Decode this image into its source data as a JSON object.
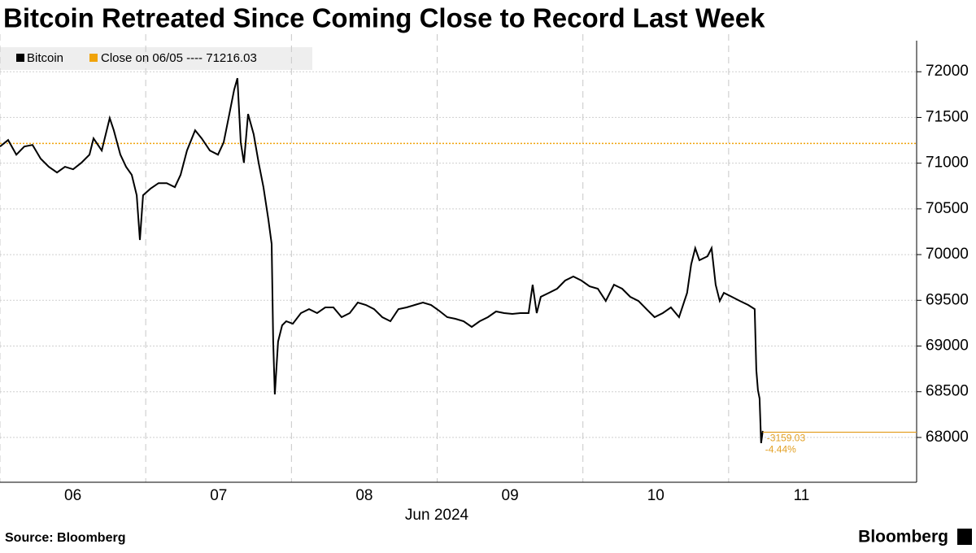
{
  "chart_data": {
    "type": "line",
    "title": "Bitcoin Retreated Since Coming Close to Record Last Week",
    "x_label": "Jun 2024",
    "source": "Source: Bloomberg",
    "brand": "Bloomberg",
    "series": [
      {
        "name": "Bitcoin",
        "color": "#000000",
        "x": [
          6.0,
          6.056,
          6.112,
          6.167,
          6.223,
          6.279,
          6.335,
          6.391,
          6.446,
          6.502,
          6.558,
          6.614,
          6.642,
          6.698,
          6.753,
          6.781,
          6.826,
          6.865,
          6.904,
          6.938,
          6.96,
          6.982,
          7.032,
          7.088,
          7.144,
          7.2,
          7.239,
          7.283,
          7.339,
          7.384,
          7.44,
          7.496,
          7.535,
          7.574,
          7.607,
          7.629,
          7.652,
          7.674,
          7.702,
          7.741,
          7.775,
          7.808,
          7.842,
          7.864,
          7.875,
          7.886,
          7.908,
          7.936,
          7.964,
          8.009,
          8.065,
          8.121,
          8.176,
          8.232,
          8.288,
          8.344,
          8.4,
          8.455,
          8.511,
          8.567,
          8.623,
          8.679,
          8.734,
          8.79,
          8.846,
          8.902,
          8.958,
          9.013,
          9.069,
          9.125,
          9.181,
          9.237,
          9.292,
          9.348,
          9.404,
          9.46,
          9.516,
          9.571,
          9.627,
          9.655,
          9.683,
          9.711,
          9.767,
          9.823,
          9.878,
          9.934,
          9.99,
          10.046,
          10.102,
          10.157,
          10.213,
          10.269,
          10.325,
          10.381,
          10.436,
          10.492,
          10.548,
          10.604,
          10.66,
          10.715,
          10.743,
          10.771,
          10.799,
          10.855,
          10.883,
          10.911,
          10.939,
          10.967,
          11.022,
          11.078,
          11.134,
          11.179,
          11.19,
          11.201,
          11.212,
          11.223,
          11.234
        ],
        "values": [
          71182,
          71253,
          71093,
          71182,
          71200,
          71049,
          70960,
          70898,
          70960,
          70933,
          71004,
          71093,
          71271,
          71138,
          71493,
          71360,
          71093,
          70960,
          70871,
          70649,
          70160,
          70649,
          70720,
          70782,
          70782,
          70738,
          70871,
          71138,
          71360,
          71271,
          71138,
          71093,
          71227,
          71538,
          71804,
          71929,
          71227,
          71004,
          71538,
          71316,
          71004,
          70738,
          70382,
          70116,
          69049,
          68471,
          69049,
          69227,
          69271,
          69244,
          69360,
          69404,
          69360,
          69422,
          69422,
          69316,
          69360,
          69476,
          69449,
          69404,
          69316,
          69271,
          69404,
          69422,
          69449,
          69476,
          69449,
          69387,
          69316,
          69298,
          69271,
          69209,
          69271,
          69316,
          69378,
          69360,
          69351,
          69360,
          69360,
          69671,
          69360,
          69538,
          69582,
          69627,
          69716,
          69760,
          69716,
          69653,
          69627,
          69493,
          69671,
          69627,
          69538,
          69493,
          69404,
          69316,
          69360,
          69422,
          69316,
          69582,
          69893,
          70071,
          69938,
          69982,
          70071,
          69671,
          69493,
          69582,
          69538,
          69493,
          69449,
          69404,
          68738,
          68516,
          68427,
          67938,
          68071
        ]
      }
    ],
    "reference": {
      "label": "Close on 06/05 ---- 71216.03",
      "value": 71216.03,
      "color": "#f0a30a"
    },
    "annotations": {
      "change": "-3159.03",
      "percent": "-4.44%",
      "level": 68057,
      "color": "#e3a024"
    },
    "xlim": [
      6,
      12.29
    ],
    "xticks": [
      {
        "value": 6.5,
        "label": "06"
      },
      {
        "value": 7.5,
        "label": "07"
      },
      {
        "value": 8.5,
        "label": "08"
      },
      {
        "value": 9.5,
        "label": "09"
      },
      {
        "value": 10.5,
        "label": "10"
      },
      {
        "value": 11.5,
        "label": "11"
      }
    ],
    "ylim": [
      67510,
      72340
    ],
    "yticks": [
      68000,
      68500,
      69000,
      69500,
      70000,
      70500,
      71000,
      71500,
      72000
    ],
    "grid": true,
    "legend": "top-left"
  }
}
